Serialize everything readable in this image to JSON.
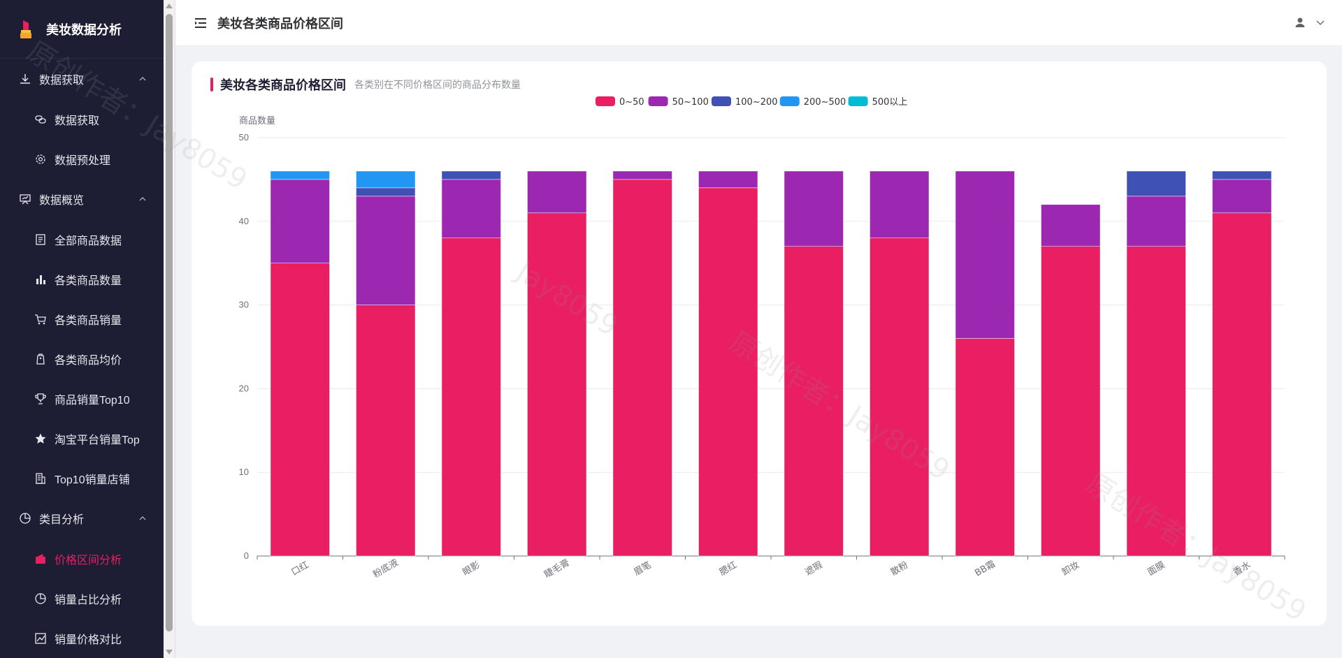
{
  "app": {
    "brand_title": "美妆数据分析"
  },
  "header": {
    "page_title": "美妆各类商品价格区间"
  },
  "sidebar": {
    "groups": [
      {
        "label": "数据获取",
        "icon": "download-icon",
        "items": [
          {
            "label": "数据获取",
            "icon": "link-icon"
          },
          {
            "label": "数据预处理",
            "icon": "gear-icon"
          }
        ]
      },
      {
        "label": "数据概览",
        "icon": "presentation-board-icon",
        "items": [
          {
            "label": "全部商品数据",
            "icon": "document-icon"
          },
          {
            "label": "各类商品数量",
            "icon": "bar-chart-icon"
          },
          {
            "label": "各类商品销量",
            "icon": "shopping-cart-icon"
          },
          {
            "label": "各类商品均价",
            "icon": "price-tag-icon"
          },
          {
            "label": "商品销量Top10",
            "icon": "trophy-icon"
          },
          {
            "label": "淘宝平台销量Top",
            "icon": "star-icon"
          },
          {
            "label": "Top10销量店铺",
            "icon": "building-icon"
          }
        ]
      },
      {
        "label": "类目分析",
        "icon": "pie-chart-icon",
        "items": [
          {
            "label": "价格区间分析",
            "icon": "wallet-icon",
            "active": true
          },
          {
            "label": "销量占比分析",
            "icon": "pie-chart-icon"
          },
          {
            "label": "销量价格对比",
            "icon": "line-chart-icon"
          }
        ]
      }
    ]
  },
  "card": {
    "title": "美妆各类商品价格区间",
    "subtitle": "各类别在不同价格区间的商品分布数量"
  },
  "watermark": [
    "原创作者：Jay8059",
    "Jay8059",
    "原创作者：Jay8059",
    "原创作者：Jay8059"
  ],
  "colors": {
    "sidebar_bg": "#1d1e33",
    "accent": "#e91e63"
  },
  "chart_data": {
    "type": "bar",
    "stacked": true,
    "ylabel": "商品数量",
    "ylim": [
      0,
      50
    ],
    "yticks": [
      0,
      10,
      20,
      30,
      40,
      50
    ],
    "legend_position": "top-center",
    "grid": true,
    "categories": [
      "口红",
      "粉底液",
      "眼影",
      "睫毛膏",
      "眉笔",
      "腮红",
      "遮瑕",
      "散粉",
      "BB霜",
      "卸妆",
      "面膜",
      "香水"
    ],
    "series": [
      {
        "name": "0~50",
        "color": "#e91e63",
        "values": [
          35,
          30,
          38,
          41,
          45,
          44,
          37,
          38,
          26,
          37,
          37,
          41
        ]
      },
      {
        "name": "50~100",
        "color": "#9c27b0",
        "values": [
          10,
          13,
          7,
          5,
          1,
          2,
          9,
          8,
          20,
          5,
          6,
          4
        ]
      },
      {
        "name": "100~200",
        "color": "#3f51b5",
        "values": [
          0,
          1,
          1,
          0,
          0,
          0,
          0,
          0,
          0,
          0,
          3,
          1
        ]
      },
      {
        "name": "200~500",
        "color": "#2196f3",
        "values": [
          1,
          2,
          0,
          0,
          0,
          0,
          0,
          0,
          0,
          0,
          0,
          0
        ]
      },
      {
        "name": "500以上",
        "color": "#00bcd4",
        "values": [
          0,
          0,
          0,
          0,
          0,
          0,
          0,
          0,
          0,
          0,
          0,
          0
        ]
      }
    ]
  }
}
